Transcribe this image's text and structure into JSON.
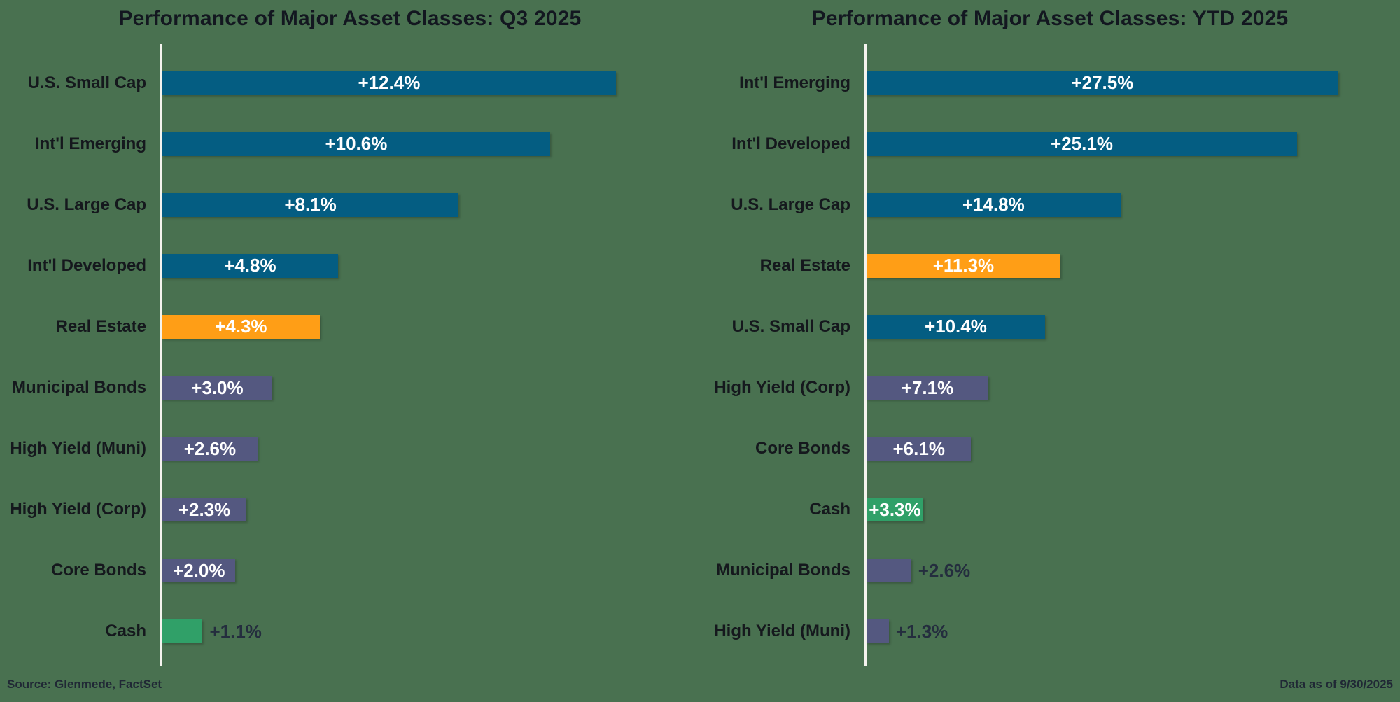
{
  "page_background": "#497150",
  "palette": {
    "equity_blue": "#045D82",
    "real_estate_orange": "#FF9E16",
    "bond_purple": "#545880",
    "cash_green": "#30A068",
    "axis_line": "#F4F3EE",
    "category_label_text": "#15181D",
    "value_text_inside": "#FFFFFF",
    "value_text_outside": "#242D3E"
  },
  "footer": {
    "source": "Source: Glenmede, FactSet",
    "data_as_of": "Data as of 9/30/2025"
  },
  "chart_data": [
    {
      "type": "bar",
      "orientation": "horizontal",
      "title": "Performance of Major Asset Classes: Q3 2025",
      "xlabel": "",
      "ylabel": "",
      "xlim": [
        0,
        14.7
      ],
      "grid": false,
      "legend": false,
      "categories": [
        "U.S. Small Cap",
        "Int'l Emerging",
        "U.S. Large Cap",
        "Int'l Developed",
        "Real Estate",
        "Municipal Bonds",
        "High Yield (Muni)",
        "High Yield (Corp)",
        "Core Bonds",
        "Cash"
      ],
      "values": [
        12.4,
        10.6,
        8.1,
        4.8,
        4.3,
        3.0,
        2.6,
        2.3,
        2.0,
        1.1
      ],
      "value_labels": [
        "+12.4%",
        "+10.6%",
        "+8.1%",
        "+4.8%",
        "+4.3%",
        "+3.0%",
        "+2.6%",
        "+2.3%",
        "+2.0%",
        "+1.1%"
      ],
      "bar_color_keys": [
        "equity_blue",
        "equity_blue",
        "equity_blue",
        "equity_blue",
        "real_estate_orange",
        "bond_purple",
        "bond_purple",
        "bond_purple",
        "bond_purple",
        "cash_green"
      ]
    },
    {
      "type": "bar",
      "orientation": "horizontal",
      "title": "Performance of Major Asset Classes: YTD 2025",
      "xlabel": "",
      "ylabel": "",
      "xlim": [
        0,
        31.1
      ],
      "grid": false,
      "legend": false,
      "categories": [
        "Int'l Emerging",
        "Int'l Developed",
        "U.S. Large Cap",
        "Real Estate",
        "U.S. Small Cap",
        "High Yield (Corp)",
        "Core Bonds",
        "Cash",
        "Municipal Bonds",
        "High Yield (Muni)"
      ],
      "values": [
        27.5,
        25.1,
        14.8,
        11.3,
        10.4,
        7.1,
        6.1,
        3.3,
        2.6,
        1.3
      ],
      "value_labels": [
        "+27.5%",
        "+25.1%",
        "+14.8%",
        "+11.3%",
        "+10.4%",
        "+7.1%",
        "+6.1%",
        "+3.3%",
        "+2.6%",
        "+1.3%"
      ],
      "bar_color_keys": [
        "equity_blue",
        "equity_blue",
        "equity_blue",
        "real_estate_orange",
        "equity_blue",
        "bond_purple",
        "bond_purple",
        "cash_green",
        "bond_purple",
        "bond_purple"
      ]
    }
  ]
}
